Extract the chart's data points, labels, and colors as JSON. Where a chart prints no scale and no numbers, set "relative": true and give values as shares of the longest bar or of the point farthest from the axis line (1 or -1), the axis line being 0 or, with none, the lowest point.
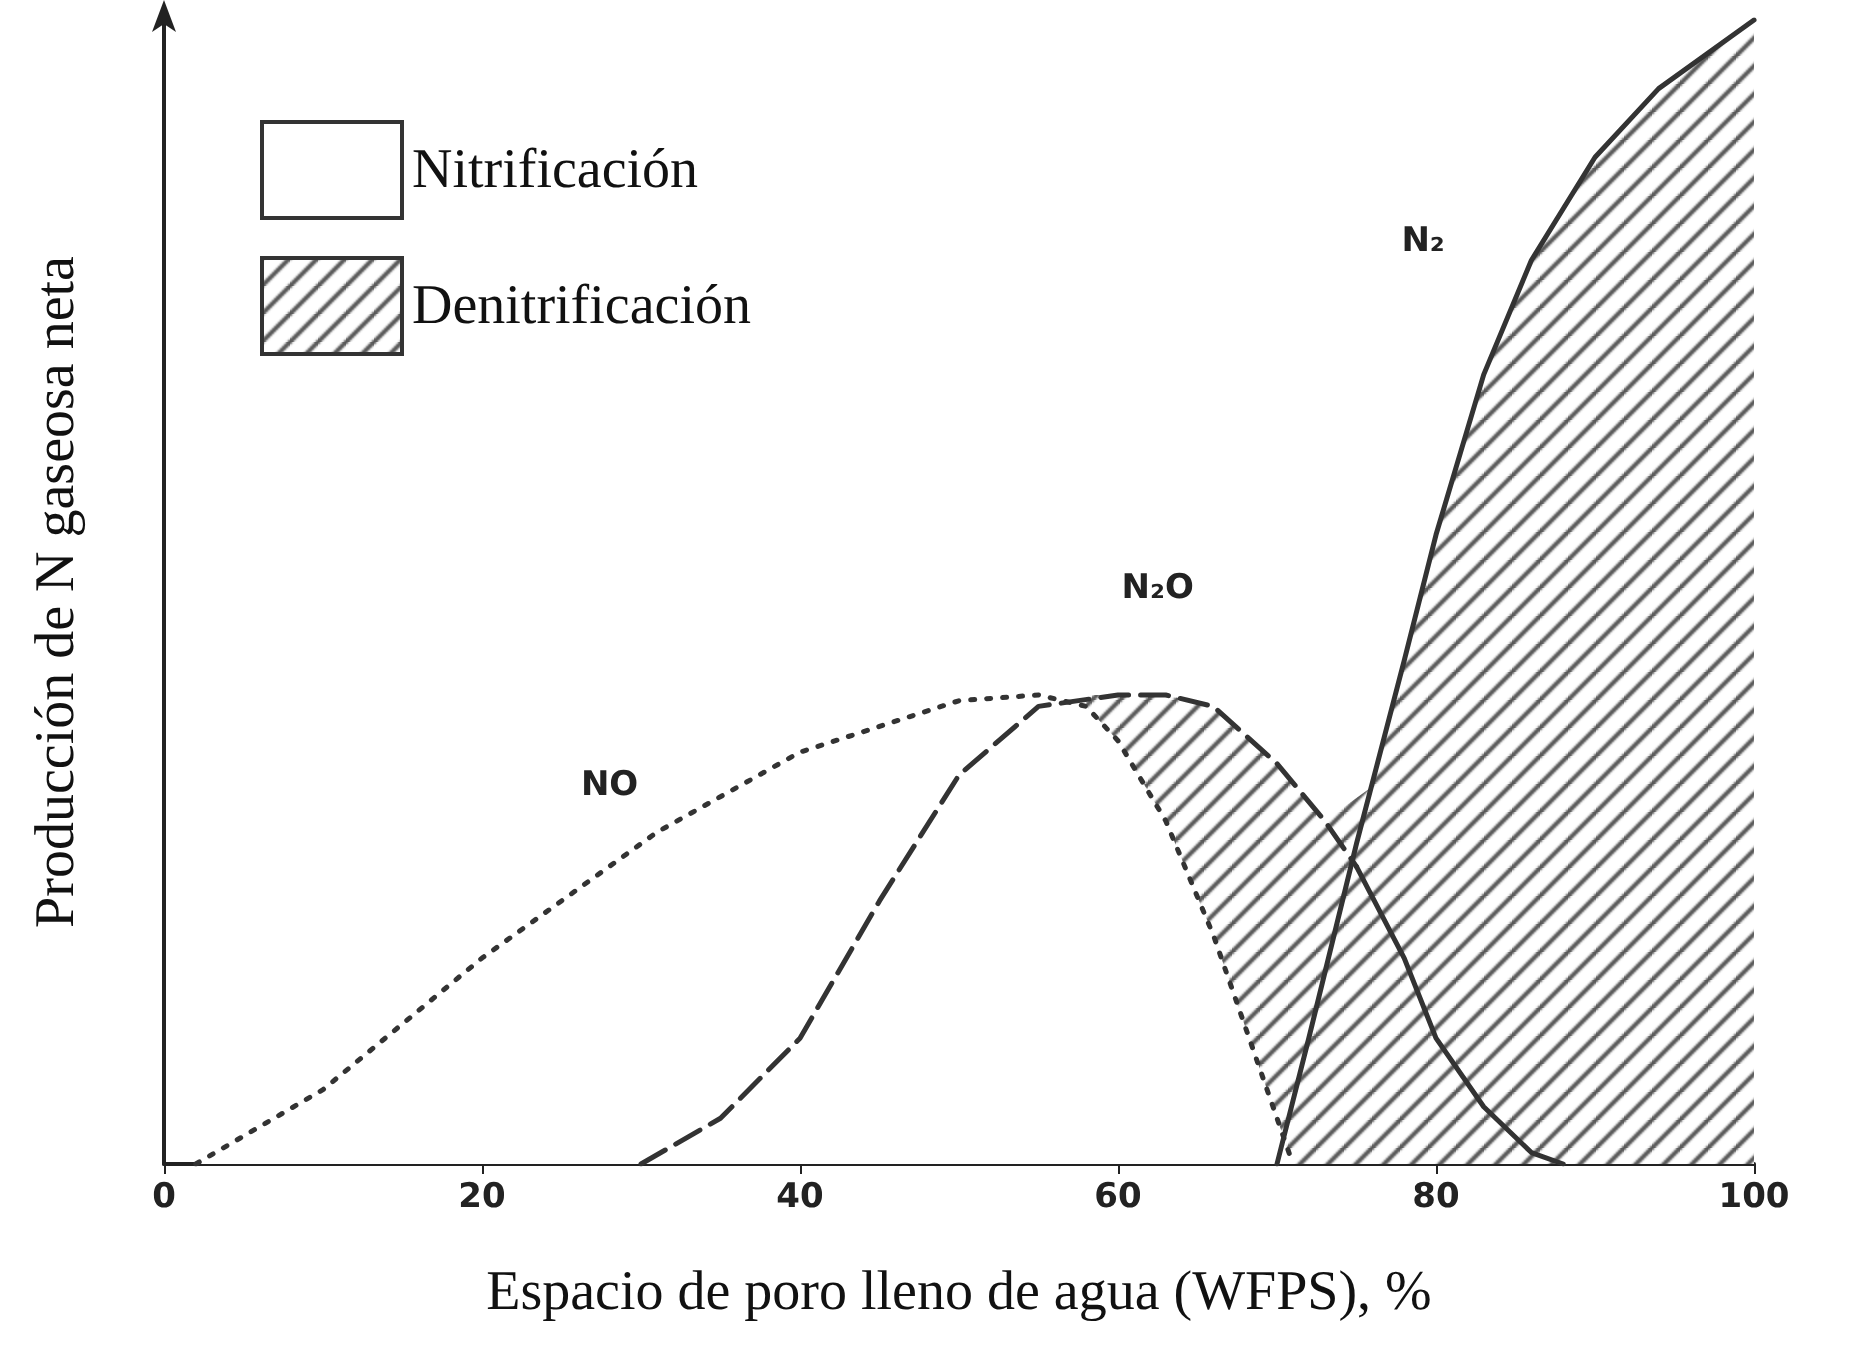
{
  "chart_data": {
    "type": "line",
    "relative": true,
    "xlabel": "Espacio de poro lleno de agua (WFPS), %",
    "ylabel": "Producción de N gaseosa neta",
    "xlim": [
      0,
      100
    ],
    "xticks": [
      0,
      20,
      40,
      60,
      80,
      100
    ],
    "legend": "top left",
    "annotations": [
      {
        "text": "NO",
        "x": 31,
        "y": 0.29
      },
      {
        "text": "N₂O",
        "x": 64,
        "y": 0.41
      },
      {
        "text": "N₂",
        "x": 86,
        "y": 0.79
      }
    ],
    "series": [
      {
        "name": "Denitrificación",
        "type": "area",
        "color": "#555555",
        "x": [
          58,
          60,
          63,
          66,
          70,
          73,
          76,
          78,
          80,
          83,
          86,
          90,
          94,
          100
        ],
        "values": [
          0.41,
          0.41,
          0.41,
          0.4,
          0.35,
          0.3,
          0.33,
          0.44,
          0.55,
          0.69,
          0.79,
          0.88,
          0.94,
          1
        ]
      },
      {
        "name": "Nitrificación",
        "type": "area",
        "color": "#ffffff",
        "line_style": "dotted",
        "x": [
          2,
          10,
          20,
          31,
          40,
          50,
          55,
          58,
          60,
          63,
          66,
          69,
          71
        ],
        "values": [
          0,
          0.065,
          0.18,
          0.29,
          0.36,
          0.405,
          0.41,
          0.4,
          0.37,
          0.3,
          0.2,
          0.08,
          0
        ]
      },
      {
        "line_style": "dashed",
        "color": "#333333",
        "x": [
          30,
          35,
          40,
          45,
          50,
          55,
          60,
          63,
          66,
          70,
          73,
          75
        ],
        "values": [
          0,
          0.04,
          0.11,
          0.23,
          0.34,
          0.4,
          0.41,
          0.41,
          0.4,
          0.35,
          0.3,
          0.26
        ]
      },
      {
        "line_style": "solid",
        "color": "#333333",
        "x": [
          75,
          78,
          80,
          83,
          86,
          88
        ],
        "values": [
          0.26,
          0.18,
          0.11,
          0.05,
          0.01,
          0
        ]
      },
      {
        "line_style": "solid",
        "color": "#333333",
        "x": [
          70,
          72,
          75,
          78,
          80,
          83,
          86,
          90,
          94,
          100
        ],
        "values": [
          0,
          0.11,
          0.28,
          0.44,
          0.55,
          0.69,
          0.79,
          0.88,
          0.94,
          1
        ]
      }
    ]
  }
}
